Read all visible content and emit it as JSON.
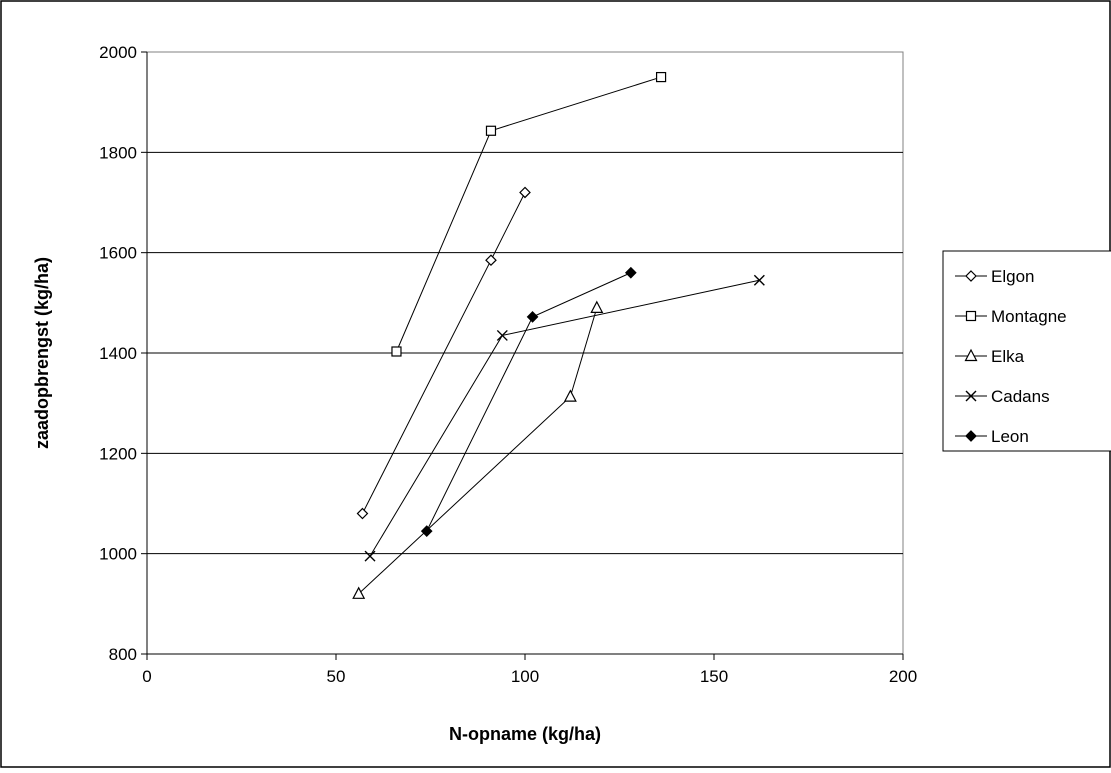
{
  "chart_data": {
    "type": "scatter",
    "xlabel": "N-opname (kg/ha)",
    "ylabel": "zaadopbrengst (kg/ha)",
    "xlim": [
      0,
      200
    ],
    "ylim": [
      800,
      2000
    ],
    "xticks": [
      0,
      50,
      100,
      150,
      200
    ],
    "yticks": [
      800,
      1000,
      1200,
      1400,
      1600,
      1800,
      2000
    ],
    "grid": "horizontal",
    "legend": "right",
    "series": [
      {
        "name": "Elgon",
        "marker": "diamond-open",
        "x": [
          57,
          91,
          100
        ],
        "y": [
          1080,
          1585,
          1720
        ]
      },
      {
        "name": "Montagne",
        "marker": "square-open",
        "x": [
          66,
          91,
          136
        ],
        "y": [
          1403,
          1843,
          1950
        ]
      },
      {
        "name": "Elka",
        "marker": "triangle-open",
        "x": [
          56,
          112,
          119
        ],
        "y": [
          920,
          1313,
          1490
        ]
      },
      {
        "name": "Cadans",
        "marker": "cross",
        "x": [
          59,
          94,
          162
        ],
        "y": [
          995,
          1435,
          1545
        ]
      },
      {
        "name": "Leon",
        "marker": "diamond-filled",
        "x": [
          74,
          102,
          128
        ],
        "y": [
          1045,
          1472,
          1560
        ]
      }
    ]
  }
}
